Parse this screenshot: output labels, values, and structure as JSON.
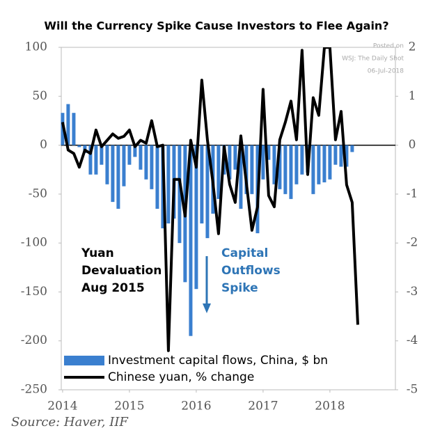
{
  "chart_data": {
    "type": "bar_line",
    "title": "Will the Currency Spike Cause Investors to Flee Again?",
    "source": "Source: Haver, IIF",
    "watermark": [
      "Posted on",
      "WSJ: The Daily Shot",
      "06-Jul-2018"
    ],
    "xlim": [
      2013.98,
      2018.98
    ],
    "xticks": [
      2014,
      2015,
      2016,
      2017,
      2018
    ],
    "ylim": [
      -250,
      100
    ],
    "yticks": [
      100,
      50,
      0,
      -50,
      -100,
      -150,
      -200,
      -250
    ],
    "y2lim": [
      -5,
      2
    ],
    "y2ticks": [
      2,
      1,
      0,
      -1,
      -2,
      -3,
      -4,
      -5
    ],
    "legend": "lower left",
    "series": [
      {
        "name": "Investment capital flows, China, $ bn",
        "kind": "bar",
        "color": "#3a7fcf",
        "x": [
          2014,
          2014.083,
          2014.167,
          2014.25,
          2014.333,
          2014.417,
          2014.5,
          2014.583,
          2014.667,
          2014.75,
          2014.833,
          2014.917,
          2015,
          2015.083,
          2015.167,
          2015.25,
          2015.333,
          2015.417,
          2015.5,
          2015.583,
          2015.667,
          2015.75,
          2015.833,
          2015.917,
          2016,
          2016.083,
          2016.167,
          2016.25,
          2016.333,
          2016.417,
          2016.5,
          2016.583,
          2016.667,
          2016.75,
          2016.833,
          2016.917,
          2017,
          2017.083,
          2017.167,
          2017.25,
          2017.333,
          2017.417,
          2017.5,
          2017.583,
          2017.667,
          2017.75,
          2017.833,
          2017.917,
          2018,
          2018.083,
          2018.167,
          2018.25,
          2018.333
        ],
        "values": [
          33,
          42,
          33,
          -2,
          -8,
          -30,
          -30,
          -20,
          -40,
          -58,
          -65,
          -42,
          -20,
          -12,
          -25,
          -35,
          -45,
          -65,
          -85,
          -80,
          -75,
          -100,
          -140,
          -195,
          -147,
          -80,
          -95,
          -70,
          -55,
          -30,
          -35,
          -25,
          -65,
          -50,
          -50,
          -90,
          -35,
          -15,
          -40,
          -45,
          -50,
          -55,
          -40,
          -30,
          -28,
          -50,
          -40,
          -38,
          -35,
          -20,
          -22,
          -22,
          -7
        ]
      },
      {
        "name": "Chinese yuan, % change",
        "kind": "line",
        "axis": "y2",
        "color": "#000000",
        "x": [
          2014,
          2014.083,
          2014.167,
          2014.25,
          2014.333,
          2014.417,
          2014.5,
          2014.583,
          2014.667,
          2014.75,
          2014.833,
          2014.917,
          2015,
          2015.083,
          2015.167,
          2015.25,
          2015.333,
          2015.417,
          2015.5,
          2015.583,
          2015.667,
          2015.75,
          2015.833,
          2015.917,
          2016,
          2016.083,
          2016.167,
          2016.25,
          2016.333,
          2016.417,
          2016.5,
          2016.583,
          2016.667,
          2016.75,
          2016.833,
          2016.917,
          2017,
          2017.083,
          2017.167,
          2017.25,
          2017.333,
          2017.417,
          2017.5,
          2017.583,
          2017.667,
          2017.75,
          2017.833,
          2017.917,
          2018,
          2018.083,
          2018.167,
          2018.25,
          2018.333,
          2018.417
        ],
        "values": [
          0.47,
          -0.1,
          -0.17,
          -0.45,
          -0.1,
          -0.17,
          0.31,
          -0.03,
          0.1,
          0.23,
          0.14,
          0.18,
          0.31,
          -0.03,
          0.1,
          0.04,
          0.5,
          -0.03,
          0.0,
          -4.2,
          -0.7,
          -0.7,
          -1.45,
          0.1,
          -0.45,
          1.33,
          0.1,
          -0.77,
          -1.81,
          -0.03,
          -0.8,
          -1.17,
          0.19,
          -0.77,
          -1.74,
          -1.26,
          1.14,
          -1.03,
          -1.26,
          0.11,
          0.47,
          0.9,
          0.11,
          1.94,
          -0.6,
          0.97,
          0.61,
          2.0,
          2.0,
          0.11,
          0.69,
          -0.81,
          -1.17,
          -3.67
        ]
      }
    ],
    "annotations": [
      {
        "lines": [
          "Yuan",
          "Devaluation",
          "Aug 2015"
        ],
        "color": "#000000"
      },
      {
        "lines": [
          "Capital",
          "Outflows",
          "Spike"
        ],
        "color": "#2e75b6"
      }
    ]
  }
}
